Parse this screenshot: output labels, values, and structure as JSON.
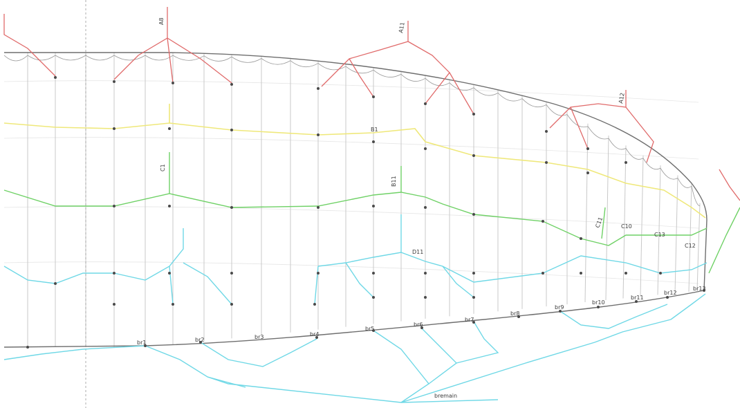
{
  "diagram": {
    "colors": {
      "top": "#e06a6a",
      "upper": "#efe87a",
      "middle": "#6fd166",
      "lower": "#6fd8e6",
      "outline": "#6e6e6e",
      "ribs": "#c8c8c8"
    },
    "labels": {
      "br1": "br1",
      "br2": "br2",
      "br3": "br3",
      "br4": "br4",
      "br5": "br5",
      "br6": "br6",
      "br7": "br7",
      "br8": "br8",
      "br9": "br9",
      "br10": "br10",
      "br11": "br11",
      "br12": "br12",
      "br13": "br13",
      "bremain": "bremain",
      "c1": "C1",
      "c11": "C11",
      "c12": "C12",
      "c13": "C13",
      "c10": "C10",
      "b1": "B1",
      "b11": "B11",
      "d11": "D11",
      "a11": "A11",
      "a12": "A12",
      "a8": "A8"
    }
  }
}
